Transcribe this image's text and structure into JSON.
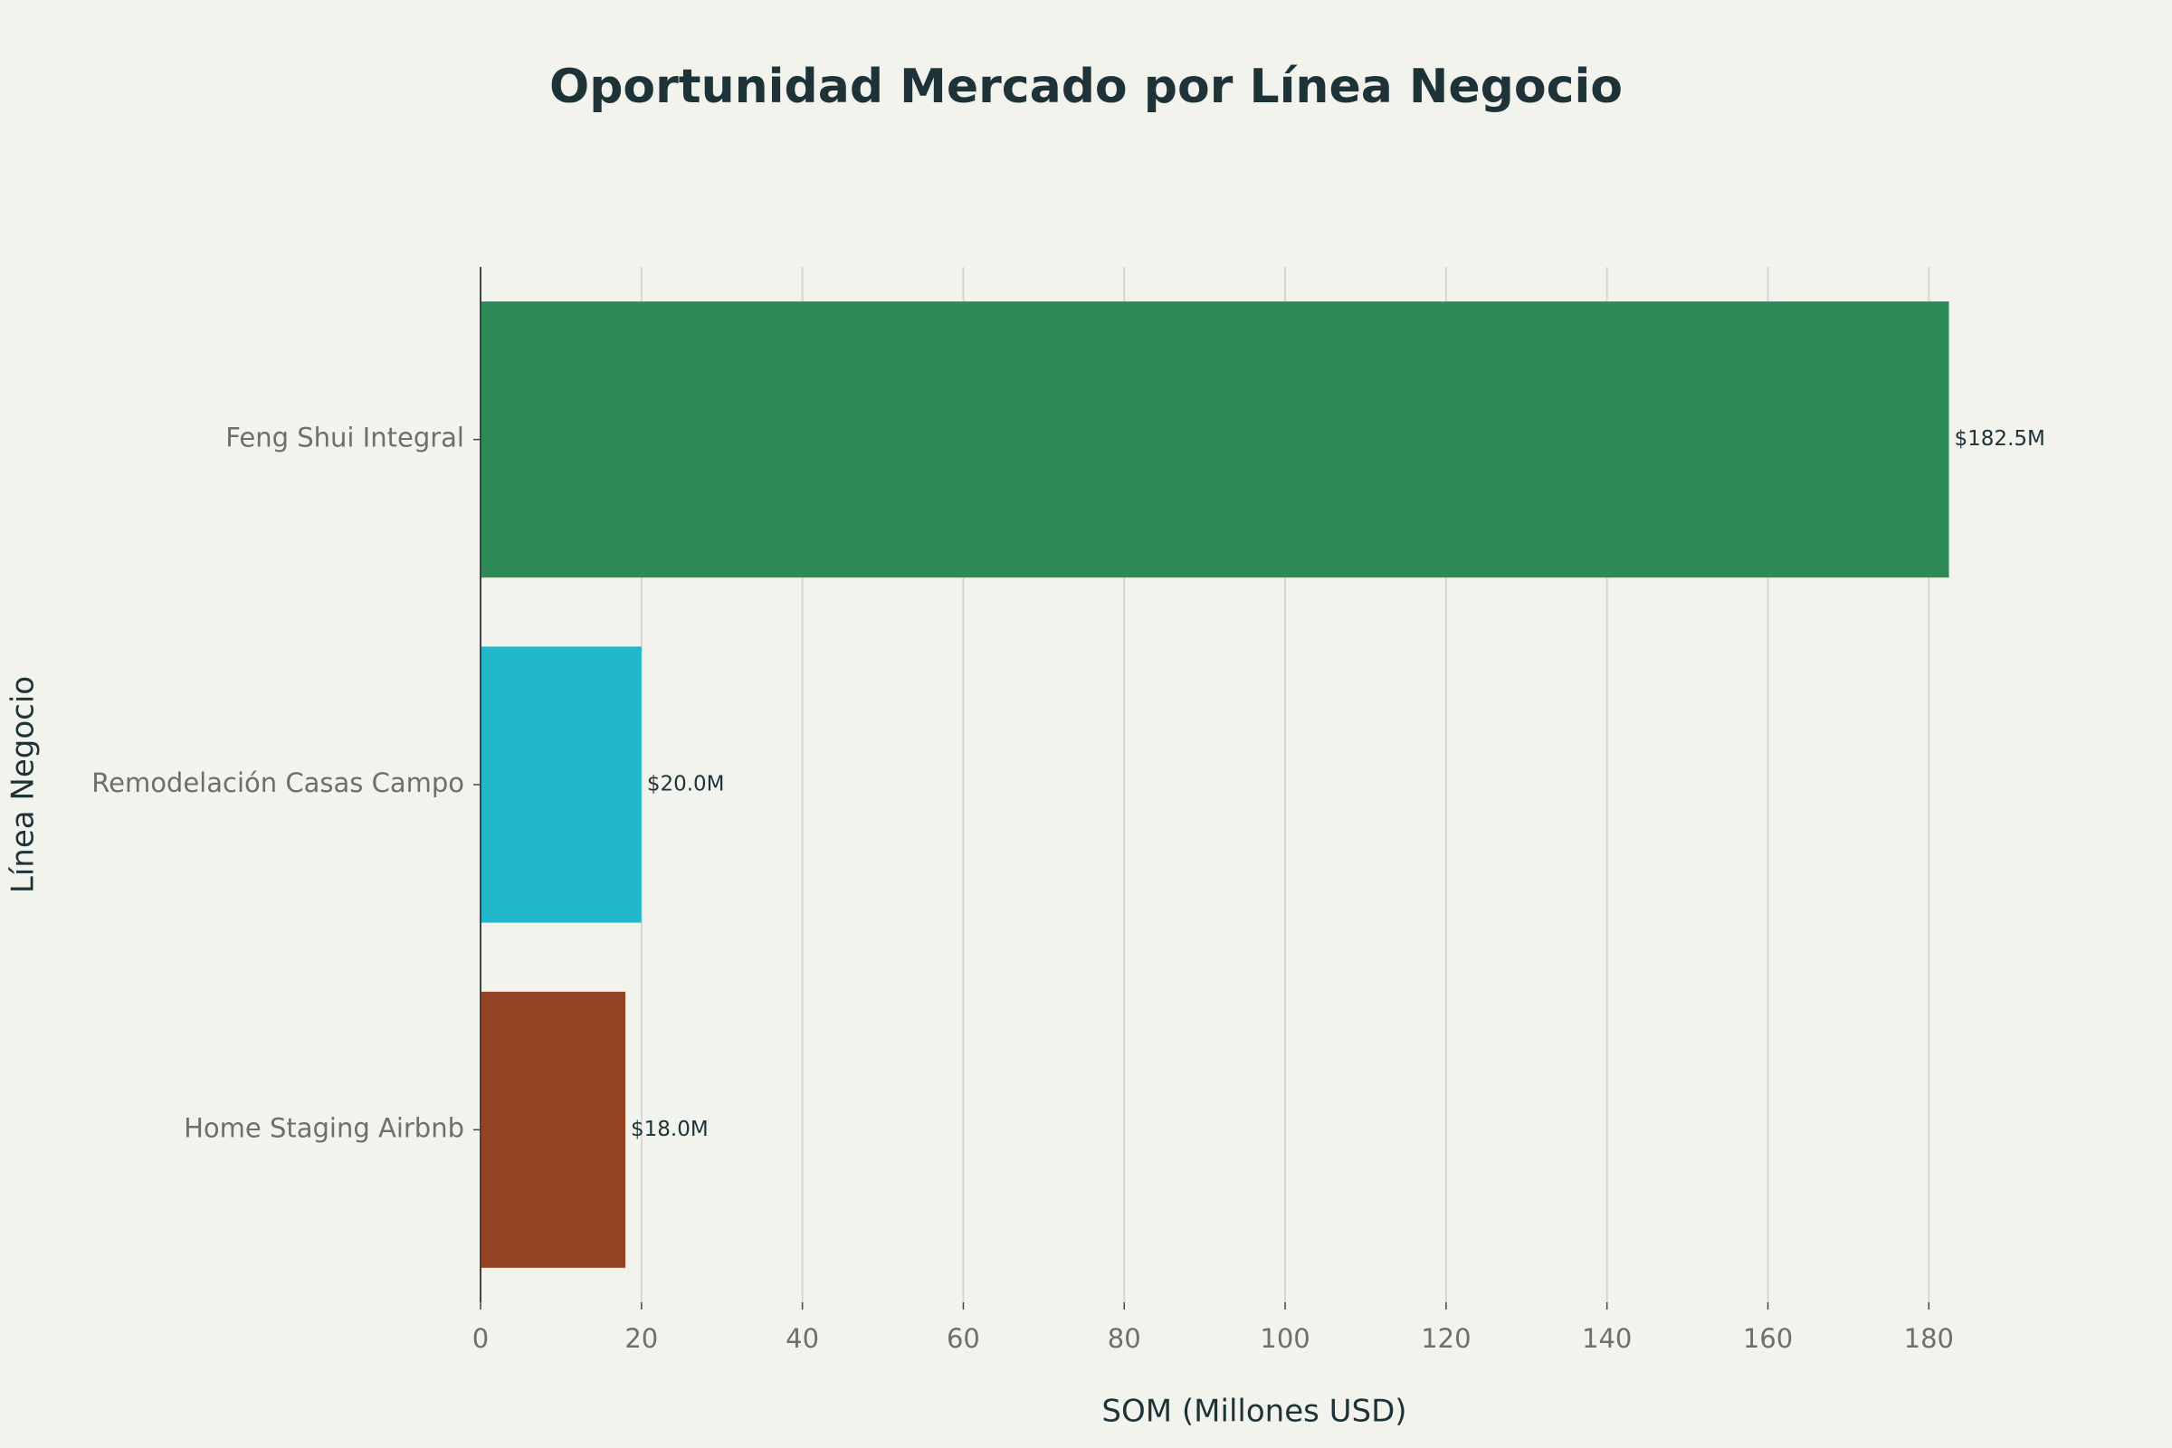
{
  "chart_data": {
    "type": "hbar",
    "title": "Oportunidad Mercado por Línea Negocio",
    "x_label": "SOM (Millones USD)",
    "y_label": "Línea Negocio",
    "categories": [
      "Feng Shui Integral",
      "Remodelación Casas Campo",
      "Home Staging Airbnb"
    ],
    "values": [
      182.5,
      20.0,
      18.0
    ],
    "value_labels": [
      "$182.5M",
      "$20.0M",
      "$18.0M"
    ],
    "colors": [
      "#2e8b57",
      "#21b8cc",
      "#944325"
    ],
    "xlim": [
      0,
      192
    ],
    "xticks": [
      0,
      20,
      40,
      60,
      80,
      100,
      120,
      140,
      160,
      180
    ],
    "grid": true
  }
}
